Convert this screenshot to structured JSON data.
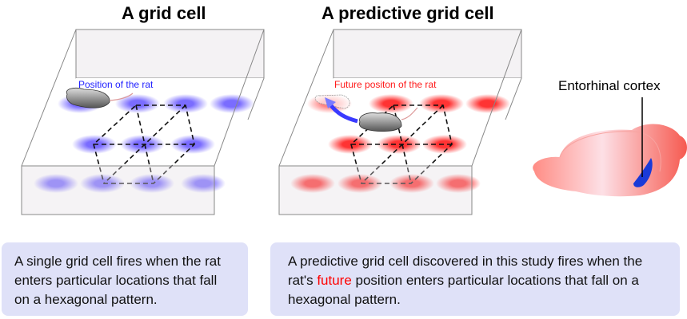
{
  "panels": [
    {
      "title": "A grid cell",
      "rat_label": "Position of the rat",
      "spot_color": "#6a5cff",
      "caption": "A single grid cell fires when the rat enters particular locations that fall on a hexagonal pattern."
    },
    {
      "title": "A predictive grid cell",
      "rat_label": "Future positon of the rat",
      "spot_color": "#ff2a2a",
      "caption_before": "A predictive grid cell discovered in this study fires when the rat's ",
      "caption_highlight": "future",
      "caption_after": " position enters particular locations that fall on a hexagonal pattern.",
      "highlight_color": "#ff0000"
    }
  ],
  "brain": {
    "label": "Entorhinal cortex",
    "region_color": "#1a3ad8",
    "brain_color": "#f97c74"
  }
}
